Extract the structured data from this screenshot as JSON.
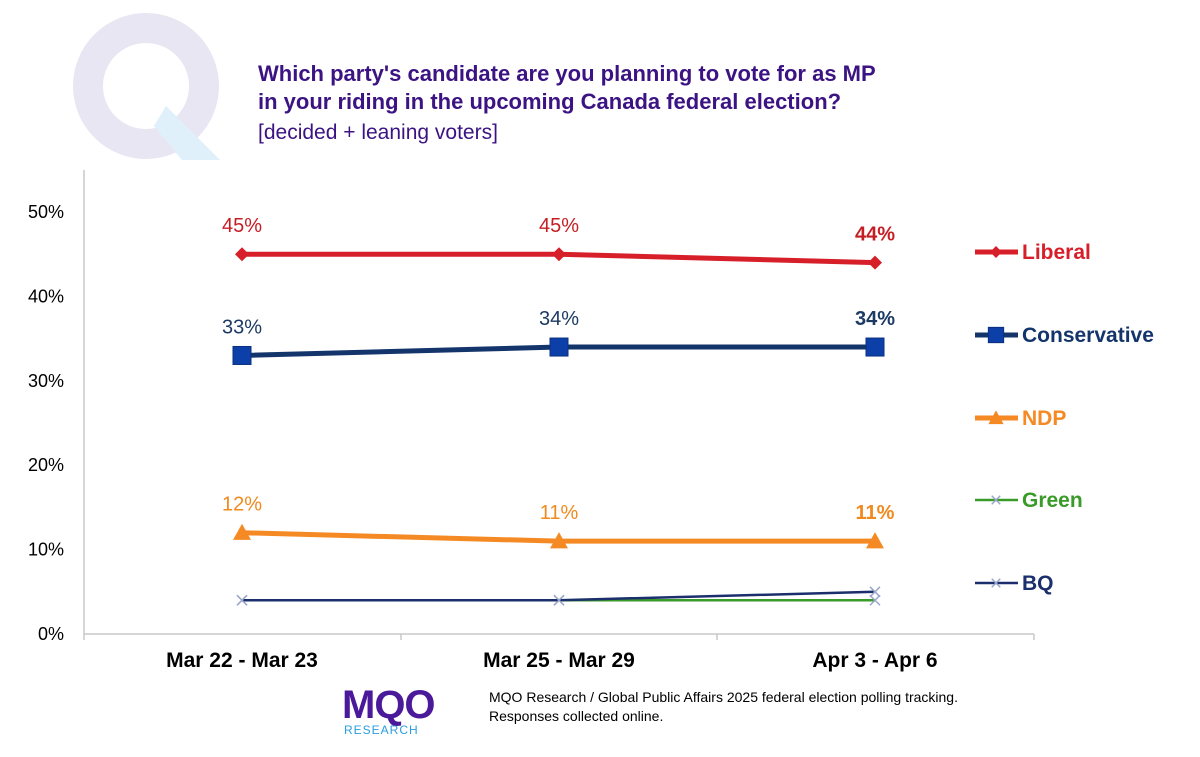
{
  "title_lines": [
    "Which party's candidate are you planning to vote for as MP",
    "in your riding in the upcoming Canada federal election?"
  ],
  "subtitle": "[decided + leaning voters]",
  "footer": {
    "logo_text": "MQO",
    "logo_subtext": "RESEARCH",
    "line1": "MQO Research / Global Public Affairs 2025 federal election polling tracking.",
    "line2": "Responses collected online."
  },
  "colors": {
    "title": "#3b1382",
    "liberal": "#d71f2a",
    "conservative": "#14356b",
    "conservative_marker": "#0d3fa8",
    "ndp": "#f58a24",
    "green": "#3a9a2a",
    "bq": "#1a2f6b",
    "logo": "#4b1a9a",
    "logo_accent": "#2a9de0"
  },
  "chart_data": {
    "type": "line",
    "categories": [
      "Mar 22 - Mar 23",
      "Mar 25 - Mar 29",
      "Apr 3 - Apr 6"
    ],
    "ylim": [
      0,
      50
    ],
    "yticks": [
      "0%",
      "10%",
      "20%",
      "30%",
      "40%",
      "50%"
    ],
    "grid": false,
    "legend_position": "right",
    "series": [
      {
        "name": "Liberal",
        "values": [
          45,
          45,
          44
        ],
        "labels": [
          "45%",
          "45%",
          "44%"
        ],
        "color": "#d71f2a",
        "marker": "diamond"
      },
      {
        "name": "Conservative",
        "values": [
          33,
          34,
          34
        ],
        "labels": [
          "33%",
          "34%",
          "34%"
        ],
        "color": "#14356b",
        "marker": "square"
      },
      {
        "name": "NDP",
        "values": [
          12,
          11,
          11
        ],
        "labels": [
          "12%",
          "11%",
          "11%"
        ],
        "color": "#f58a24",
        "marker": "triangle"
      },
      {
        "name": "Green",
        "values": [
          4,
          4,
          4
        ],
        "labels": [],
        "color": "#3a9a2a",
        "marker": "x"
      },
      {
        "name": "BQ",
        "values": [
          4,
          4,
          5
        ],
        "labels": [],
        "color": "#1a2f6b",
        "marker": "x"
      }
    ]
  }
}
